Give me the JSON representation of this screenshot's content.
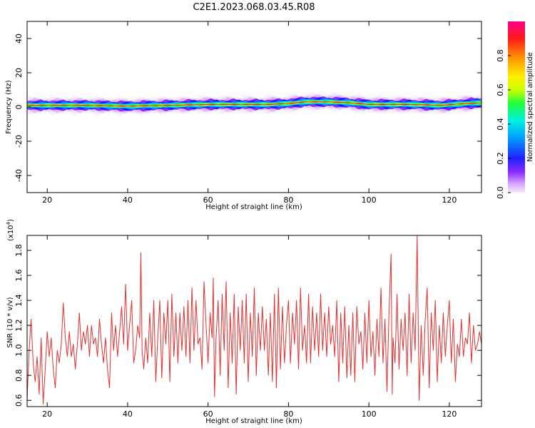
{
  "title": "C2E1.2023.068.03.45.R08",
  "colors": {
    "snr_line": "#e53030",
    "band_core": "#ff1a1a",
    "background": "#ffffff"
  },
  "chart_data": [
    {
      "type": "heatmap",
      "id": "spectrogram",
      "xlabel": "Height of straight line (km)",
      "ylabel": "Frequency (Hz)",
      "xlim": [
        15,
        128
      ],
      "ylim": [
        -50,
        50
      ],
      "xticks": [
        20,
        40,
        60,
        80,
        100,
        120
      ],
      "yticks": [
        -40,
        -20,
        0,
        20,
        40
      ],
      "grid": false,
      "colorbar": {
        "label": "Normalized spectral amplitude",
        "range": [
          0.0,
          1.0
        ],
        "ticks": [
          "0.0",
          "0.2",
          "0.4",
          "0.6",
          "0.8"
        ],
        "tick_values": [
          0.0,
          0.2,
          0.4,
          0.6,
          0.8
        ],
        "colormap": [
          "#f6e8ff",
          "#d8a8ff",
          "#8a2cff",
          "#2020ff",
          "#00a0ff",
          "#00f0e0",
          "#20ff40",
          "#ccff00",
          "#ffee00",
          "#ff9900",
          "#ff1a1a",
          "#ff0088"
        ]
      },
      "band_center_hz": [
        [
          15,
          1
        ],
        [
          30,
          1
        ],
        [
          40,
          0.5
        ],
        [
          50,
          1
        ],
        [
          60,
          1.5
        ],
        [
          75,
          1.5
        ],
        [
          80,
          2
        ],
        [
          84,
          3
        ],
        [
          90,
          3
        ],
        [
          95,
          2.5
        ],
        [
          100,
          1.5
        ],
        [
          110,
          1.5
        ],
        [
          118,
          1
        ],
        [
          124,
          2
        ],
        [
          128,
          2.5
        ]
      ]
    },
    {
      "type": "line",
      "id": "snr",
      "xlabel": "Height of straight line (km)",
      "ylabel": "SNR (10 * v/v)",
      "ylabel_scale": "(x10",
      "ylabel_exponent": "4",
      "ylabel_scale_close": ")",
      "xlim": [
        15,
        128
      ],
      "ylim": [
        0.55,
        1.92
      ],
      "xticks": [
        20,
        40,
        60,
        80,
        100,
        120
      ],
      "yticks": [
        0.6,
        0.8,
        1.0,
        1.2,
        1.4,
        1.6,
        1.8
      ],
      "ytick_labels": [
        "0.6",
        "0.8",
        "1.0",
        "1.2",
        "1.4",
        "1.6",
        "1.8"
      ],
      "series": [
        {
          "points": [
            [
              15,
              0.6
            ],
            [
              15.5,
              1.0
            ],
            [
              16,
              1.25
            ],
            [
              16.5,
              0.9
            ],
            [
              17,
              0.75
            ],
            [
              17.5,
              0.95
            ],
            [
              18,
              0.65
            ],
            [
              18.5,
              1.1
            ],
            [
              19,
              0.57
            ],
            [
              19.5,
              0.85
            ],
            [
              20,
              1.15
            ],
            [
              20.5,
              0.95
            ],
            [
              21,
              1.1
            ],
            [
              21.5,
              0.85
            ],
            [
              22,
              0.7
            ],
            [
              22.5,
              1.0
            ],
            [
              23,
              0.9
            ],
            [
              23.5,
              1.05
            ],
            [
              24,
              1.38
            ],
            [
              24.5,
              1.1
            ],
            [
              25,
              0.95
            ],
            [
              25.5,
              1.15
            ],
            [
              26,
              0.95
            ],
            [
              26.5,
              1.05
            ],
            [
              27,
              0.85
            ],
            [
              27.5,
              1.05
            ],
            [
              28,
              1.3
            ],
            [
              28.5,
              1.0
            ],
            [
              29,
              1.15
            ],
            [
              29.5,
              1.05
            ],
            [
              30,
              1.2
            ],
            [
              30.5,
              0.95
            ],
            [
              31,
              1.2
            ],
            [
              31.5,
              1.05
            ],
            [
              32,
              1.1
            ],
            [
              32.5,
              0.95
            ],
            [
              33,
              1.25
            ],
            [
              33.5,
              1.05
            ],
            [
              34,
              0.9
            ],
            [
              34.5,
              1.1
            ],
            [
              35,
              0.85
            ],
            [
              35.5,
              0.7
            ],
            [
              36,
              1.3
            ],
            [
              36.5,
              1.0
            ],
            [
              37,
              1.2
            ],
            [
              37.5,
              0.95
            ],
            [
              38,
              1.15
            ],
            [
              38.5,
              1.35
            ],
            [
              39,
              1.05
            ],
            [
              39.5,
              1.53
            ],
            [
              40,
              1.0
            ],
            [
              40.5,
              1.2
            ],
            [
              41,
              1.4
            ],
            [
              41.5,
              0.9
            ],
            [
              42,
              1.0
            ],
            [
              42.5,
              1.2
            ],
            [
              43,
              1.1
            ],
            [
              43.3,
              1.78
            ],
            [
              43.6,
              1.0
            ],
            [
              44,
              0.85
            ],
            [
              44.5,
              1.1
            ],
            [
              45,
              0.9
            ],
            [
              45.5,
              1.3
            ],
            [
              46,
              0.95
            ],
            [
              46.5,
              1.4
            ],
            [
              47,
              0.75
            ],
            [
              47.5,
              1.1
            ],
            [
              48,
              1.4
            ],
            [
              48.5,
              0.78
            ],
            [
              49,
              1.3
            ],
            [
              49.5,
              1.05
            ],
            [
              50,
              1.4
            ],
            [
              50.5,
              0.75
            ],
            [
              51,
              1.45
            ],
            [
              51.5,
              0.95
            ],
            [
              52,
              1.3
            ],
            [
              52.5,
              0.9
            ],
            [
              53,
              1.3
            ],
            [
              53.5,
              1.0
            ],
            [
              54,
              1.35
            ],
            [
              54.5,
              0.95
            ],
            [
              55,
              1.4
            ],
            [
              55.5,
              0.9
            ],
            [
              56,
              1.5
            ],
            [
              56.5,
              1.0
            ],
            [
              57,
              1.4
            ],
            [
              57.5,
              1.05
            ],
            [
              58,
              1.1
            ],
            [
              58.5,
              0.85
            ],
            [
              59,
              1.55
            ],
            [
              59.5,
              1.2
            ],
            [
              60,
              0.9
            ],
            [
              60.5,
              1.3
            ],
            [
              61,
              1.1
            ],
            [
              61.3,
              1.58
            ],
            [
              61.6,
              0.63
            ],
            [
              62,
              1.1
            ],
            [
              62.5,
              1.4
            ],
            [
              63,
              0.8
            ],
            [
              63.5,
              1.45
            ],
            [
              64,
              1.0
            ],
            [
              64.5,
              1.55
            ],
            [
              65,
              0.7
            ],
            [
              65.5,
              1.3
            ],
            [
              66,
              0.9
            ],
            [
              66.5,
              1.45
            ],
            [
              67,
              0.65
            ],
            [
              67.5,
              1.35
            ],
            [
              68,
              1.0
            ],
            [
              68.5,
              1.4
            ],
            [
              69,
              0.9
            ],
            [
              69.5,
              1.45
            ],
            [
              70,
              0.75
            ],
            [
              70.5,
              1.3
            ],
            [
              71,
              0.95
            ],
            [
              71.5,
              1.5
            ],
            [
              72,
              0.8
            ],
            [
              72.5,
              1.3
            ],
            [
              73,
              1.0
            ],
            [
              73.5,
              1.35
            ],
            [
              74,
              1.0
            ],
            [
              74.5,
              1.25
            ],
            [
              75,
              0.8
            ],
            [
              75.5,
              1.3
            ],
            [
              76,
              0.75
            ],
            [
              76.5,
              1.45
            ],
            [
              77,
              0.7
            ],
            [
              77.5,
              1.5
            ],
            [
              78,
              0.85
            ],
            [
              78.5,
              1.35
            ],
            [
              79,
              0.9
            ],
            [
              79.5,
              1.2
            ],
            [
              80,
              1.4
            ],
            [
              80.5,
              0.9
            ],
            [
              81,
              1.3
            ],
            [
              81.5,
              1.05
            ],
            [
              82,
              1.4
            ],
            [
              82.5,
              0.85
            ],
            [
              83,
              1.5
            ],
            [
              83.5,
              1.0
            ],
            [
              84,
              1.2
            ],
            [
              84.5,
              0.9
            ],
            [
              85,
              1.45
            ],
            [
              85.5,
              0.9
            ],
            [
              86,
              1.35
            ],
            [
              86.5,
              1.0
            ],
            [
              87,
              1.3
            ],
            [
              87.5,
              0.95
            ],
            [
              88,
              1.45
            ],
            [
              88.5,
              1.0
            ],
            [
              89,
              1.3
            ],
            [
              89.5,
              0.95
            ],
            [
              90,
              1.35
            ],
            [
              90.5,
              1.05
            ],
            [
              91,
              1.2
            ],
            [
              91.5,
              0.95
            ],
            [
              92,
              1.4
            ],
            [
              92.5,
              0.75
            ],
            [
              93,
              1.3
            ],
            [
              93.5,
              0.9
            ],
            [
              94,
              1.35
            ],
            [
              94.5,
              0.78
            ],
            [
              95,
              1.2
            ],
            [
              95.5,
              0.8
            ],
            [
              96,
              1.3
            ],
            [
              96.5,
              0.75
            ],
            [
              97,
              1.35
            ],
            [
              97.5,
              1.05
            ],
            [
              98,
              1.15
            ],
            [
              98.5,
              0.85
            ],
            [
              99,
              1.3
            ],
            [
              99.5,
              0.9
            ],
            [
              100,
              1.4
            ],
            [
              100.5,
              0.95
            ],
            [
              101,
              1.15
            ],
            [
              101.5,
              0.8
            ],
            [
              102,
              1.25
            ],
            [
              102.5,
              0.95
            ],
            [
              103,
              1.5
            ],
            [
              103.5,
              0.9
            ],
            [
              104,
              1.25
            ],
            [
              104.5,
              0.67
            ],
            [
              105,
              1.3
            ],
            [
              105.5,
              1.77
            ],
            [
              105.8,
              0.65
            ],
            [
              106,
              1.1
            ],
            [
              106.5,
              0.9
            ],
            [
              107,
              1.45
            ],
            [
              107.5,
              0.85
            ],
            [
              108,
              1.25
            ],
            [
              108.5,
              1.0
            ],
            [
              109,
              1.3
            ],
            [
              109.5,
              0.8
            ],
            [
              110,
              1.45
            ],
            [
              110.5,
              0.9
            ],
            [
              111,
              1.3
            ],
            [
              111.5,
              1.0
            ],
            [
              112,
              1.92
            ],
            [
              112.5,
              0.6
            ],
            [
              113,
              1.2
            ],
            [
              113.5,
              0.8
            ],
            [
              114,
              1.25
            ],
            [
              114.5,
              1.5
            ],
            [
              115,
              0.7
            ],
            [
              115.5,
              1.3
            ],
            [
              116,
              1.0
            ],
            [
              116.5,
              1.4
            ],
            [
              117,
              0.75
            ],
            [
              117.5,
              1.2
            ],
            [
              118,
              0.9
            ],
            [
              118.5,
              1.3
            ],
            [
              119,
              0.95
            ],
            [
              119.5,
              1.2
            ],
            [
              120,
              1.4
            ],
            [
              120.5,
              0.9
            ],
            [
              121,
              1.25
            ],
            [
              121.5,
              0.75
            ],
            [
              122,
              1.05
            ],
            [
              122.5,
              0.95
            ],
            [
              123,
              1.25
            ],
            [
              123.5,
              0.95
            ],
            [
              124,
              1.1
            ],
            [
              124.5,
              1.05
            ],
            [
              125,
              1.3
            ],
            [
              125.5,
              0.9
            ],
            [
              126,
              1.2
            ],
            [
              126.5,
              1.0
            ],
            [
              127,
              1.05
            ],
            [
              127.5,
              1.15
            ],
            [
              128,
              1.05
            ]
          ]
        }
      ]
    }
  ]
}
